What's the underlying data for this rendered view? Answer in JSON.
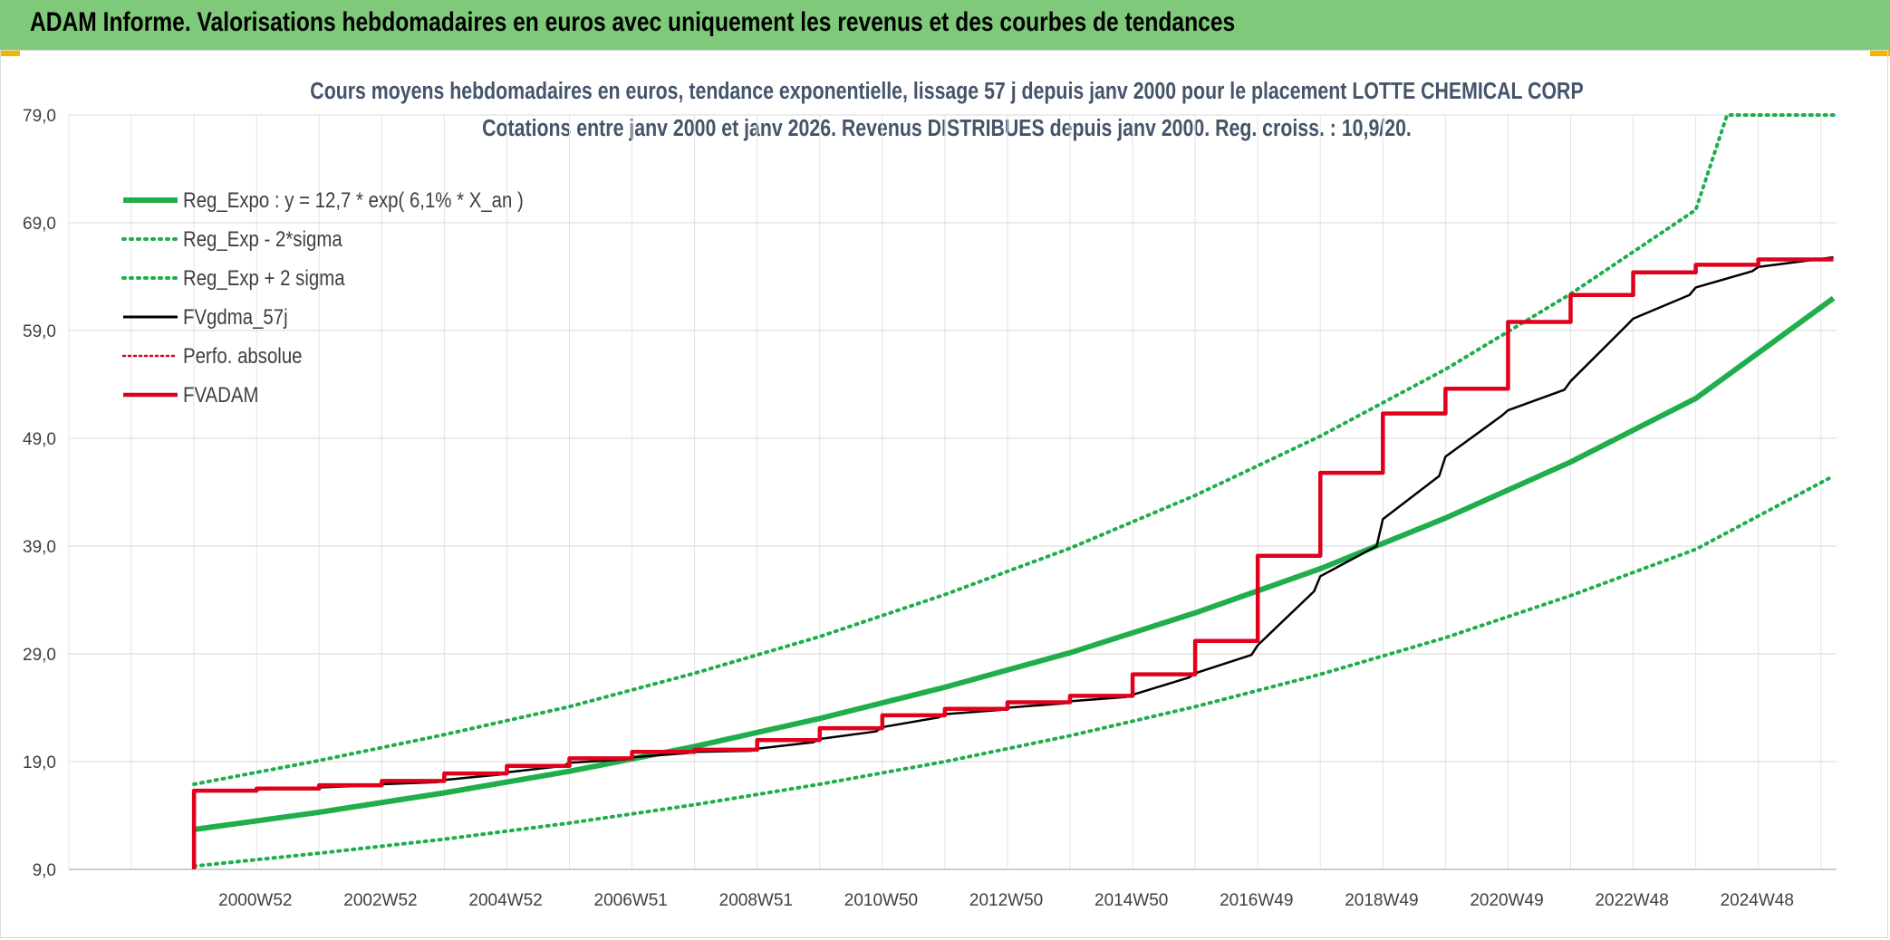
{
  "header": {
    "title": "ADAM Informe. Valorisations hebdomadaires en euros avec uniquement les revenus et des courbes de tendances",
    "accent_color": "#7fc97a",
    "corner_color": "#f2b600"
  },
  "chart_data": {
    "type": "line",
    "title": "Cours moyens hebdomadaires en euros, tendance exponentielle, lissage 57 j depuis janv 2000 pour le placement LOTTE CHEMICAL CORP",
    "subtitle": "Cotations entre janv 2000 et janv 2026. Revenus DISTRIBUES depuis janv 2000. Reg. croiss. : 10,9/20.",
    "xlabel": "",
    "ylabel": "",
    "ylim": [
      9.0,
      79.0
    ],
    "y_ticks": [
      "9,0",
      "19,0",
      "29,0",
      "39,0",
      "49,0",
      "59,0",
      "69,0",
      "79,0"
    ],
    "x_ticks": [
      "2000W52",
      "2002W52",
      "2004W52",
      "2006W51",
      "2008W51",
      "2010W50",
      "2012W50",
      "2014W50",
      "2016W49",
      "2018W49",
      "2020W49",
      "2022W48",
      "2024W48"
    ],
    "xlim": [
      1998.0,
      2026.25
    ],
    "grid": true,
    "legend_position": "top-left",
    "legend": [
      "Reg_Expo : y = 12,7 * exp( 6,1% *  X_an )",
      "Reg_Exp - 2*sigma",
      "Reg_Exp + 2 sigma",
      "FVgdma_57j",
      "Perfo. absolue",
      "FVADAM"
    ],
    "series": [
      {
        "name": "Reg_Expo",
        "color": "#1fae4b",
        "style": "solid-thick",
        "x": [
          2000,
          2002,
          2004,
          2006,
          2008,
          2010,
          2012,
          2014,
          2016,
          2018,
          2020,
          2022,
          2024,
          2026.2
        ],
        "y": [
          12.7,
          14.3,
          16.1,
          18.1,
          20.4,
          23.0,
          25.9,
          29.1,
          32.8,
          36.9,
          41.6,
          46.8,
          52.7,
          62.0
        ]
      },
      {
        "name": "Reg_Exp - 2*sigma",
        "color": "#1fae4b",
        "style": "dotted",
        "x": [
          2000,
          2002,
          2004,
          2006,
          2008,
          2010,
          2012,
          2014,
          2016,
          2018,
          2020,
          2022,
          2024,
          2026.2
        ],
        "y": [
          9.3,
          10.5,
          11.8,
          13.3,
          15.0,
          16.9,
          19.0,
          21.4,
          24.1,
          27.1,
          30.5,
          34.4,
          38.7,
          45.5
        ]
      },
      {
        "name": "Reg_Exp + 2 sigma",
        "color": "#1fae4b",
        "style": "dotted",
        "x": [
          2000,
          2002,
          2004,
          2006,
          2008,
          2010,
          2012,
          2014,
          2016,
          2018,
          2020,
          2022,
          2024,
          2024.5,
          2026.2
        ],
        "y": [
          16.9,
          19.1,
          21.5,
          24.1,
          27.2,
          30.6,
          34.5,
          38.8,
          43.7,
          49.2,
          55.4,
          62.4,
          70.2,
          79.0,
          79.0
        ]
      },
      {
        "name": "FVgdma_57j",
        "color": "#000000",
        "style": "solid",
        "x": [
          2000.0,
          2000.9,
          2001.0,
          2001.9,
          2002.0,
          2002.9,
          2003.0,
          2003.9,
          2004.0,
          2004.9,
          2005.0,
          2005.9,
          2006.0,
          2006.9,
          2007.0,
          2007.9,
          2008.0,
          2008.9,
          2009.0,
          2009.9,
          2010.0,
          2010.9,
          2011.0,
          2011.9,
          2012.0,
          2012.9,
          2013.0,
          2013.9,
          2014.0,
          2014.9,
          2015.0,
          2015.9,
          2016.0,
          2016.9,
          2017.0,
          2017.9,
          2018.0,
          2018.9,
          2019.0,
          2019.9,
          2020.0,
          2020.9,
          2021.0,
          2021.9,
          2022.0,
          2022.9,
          2023.0,
          2023.9,
          2024.0,
          2024.9,
          2025.0,
          2026.2
        ],
        "y": [
          16.3,
          16.3,
          16.4,
          16.5,
          16.6,
          16.8,
          16.9,
          17.1,
          17.3,
          17.8,
          18.0,
          18.6,
          18.9,
          19.2,
          19.4,
          19.8,
          19.9,
          20.0,
          20.2,
          20.8,
          21.1,
          21.8,
          22.2,
          23.1,
          23.4,
          23.8,
          24.0,
          24.4,
          24.6,
          25.0,
          25.2,
          26.8,
          27.2,
          28.9,
          29.8,
          34.8,
          36.2,
          39.0,
          41.5,
          45.5,
          47.3,
          51.1,
          51.6,
          53.5,
          54.3,
          59.5,
          60.1,
          62.3,
          63.0,
          64.5,
          64.9,
          65.8
        ]
      },
      {
        "name": "Perfo. absolue",
        "color": "#e0001b",
        "style": "dotted",
        "x": [],
        "y": []
      },
      {
        "name": "FVADAM",
        "color": "#e0001b",
        "style": "step-thick",
        "x": [
          2000.0,
          2001.0,
          2002.0,
          2003.0,
          2004.0,
          2005.0,
          2006.0,
          2007.0,
          2008.0,
          2009.0,
          2010.0,
          2011.0,
          2012.0,
          2013.0,
          2014.0,
          2015.0,
          2016.0,
          2017.0,
          2018.0,
          2019.0,
          2020.0,
          2021.0,
          2022.0,
          2023.0,
          2024.0,
          2025.0,
          2026.2
        ],
        "y": [
          16.3,
          16.5,
          16.8,
          17.2,
          17.9,
          18.6,
          19.3,
          19.9,
          20.1,
          21.0,
          22.1,
          23.3,
          23.9,
          24.5,
          25.1,
          27.1,
          30.2,
          38.1,
          45.8,
          51.3,
          53.6,
          59.8,
          62.3,
          64.4,
          65.1,
          65.6,
          65.6
        ]
      }
    ]
  }
}
